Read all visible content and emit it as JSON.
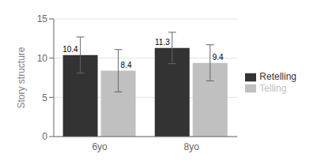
{
  "chart_data": {
    "type": "bar",
    "categories": [
      "6yo",
      "8yo"
    ],
    "series": [
      {
        "name": "Retelling",
        "color": "#333333",
        "values": [
          10.4,
          11.3
        ],
        "errors": [
          2.3,
          2.0
        ]
      },
      {
        "name": "Telling",
        "color": "#c0c0c0",
        "values": [
          8.4,
          9.4
        ],
        "errors": [
          2.7,
          2.3
        ]
      }
    ],
    "ylabel": "Story structure",
    "ylim": [
      0,
      15
    ],
    "yticks": [
      0,
      5,
      10,
      15
    ],
    "grid": true,
    "legend": "right",
    "data_labels": true
  }
}
